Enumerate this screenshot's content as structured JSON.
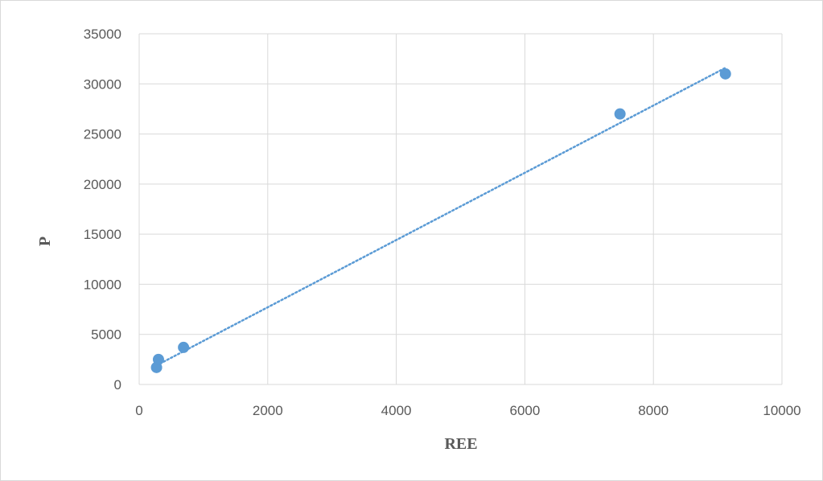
{
  "chart_data": {
    "type": "scatter",
    "title": "",
    "xlabel": "REE",
    "ylabel": "P",
    "xlim": [
      0,
      10000
    ],
    "ylim": [
      0,
      35000
    ],
    "x_ticks": [
      0,
      2000,
      4000,
      6000,
      8000,
      10000
    ],
    "y_ticks": [
      0,
      5000,
      10000,
      15000,
      20000,
      25000,
      30000,
      35000
    ],
    "grid": true,
    "legend": "none",
    "series": [
      {
        "color": "#5b9bd5",
        "points": [
          {
            "x": 270,
            "y": 1700
          },
          {
            "x": 300,
            "y": 2500
          },
          {
            "x": 690,
            "y": 3700
          },
          {
            "x": 7480,
            "y": 27000
          },
          {
            "x": 9120,
            "y": 31000
          }
        ]
      }
    ],
    "trendline": {
      "type": "linear",
      "style": "dotted",
      "color": "#5b9bd5",
      "from": {
        "x": 270,
        "y": 1900
      },
      "to": {
        "x": 9120,
        "y": 31600
      }
    }
  }
}
